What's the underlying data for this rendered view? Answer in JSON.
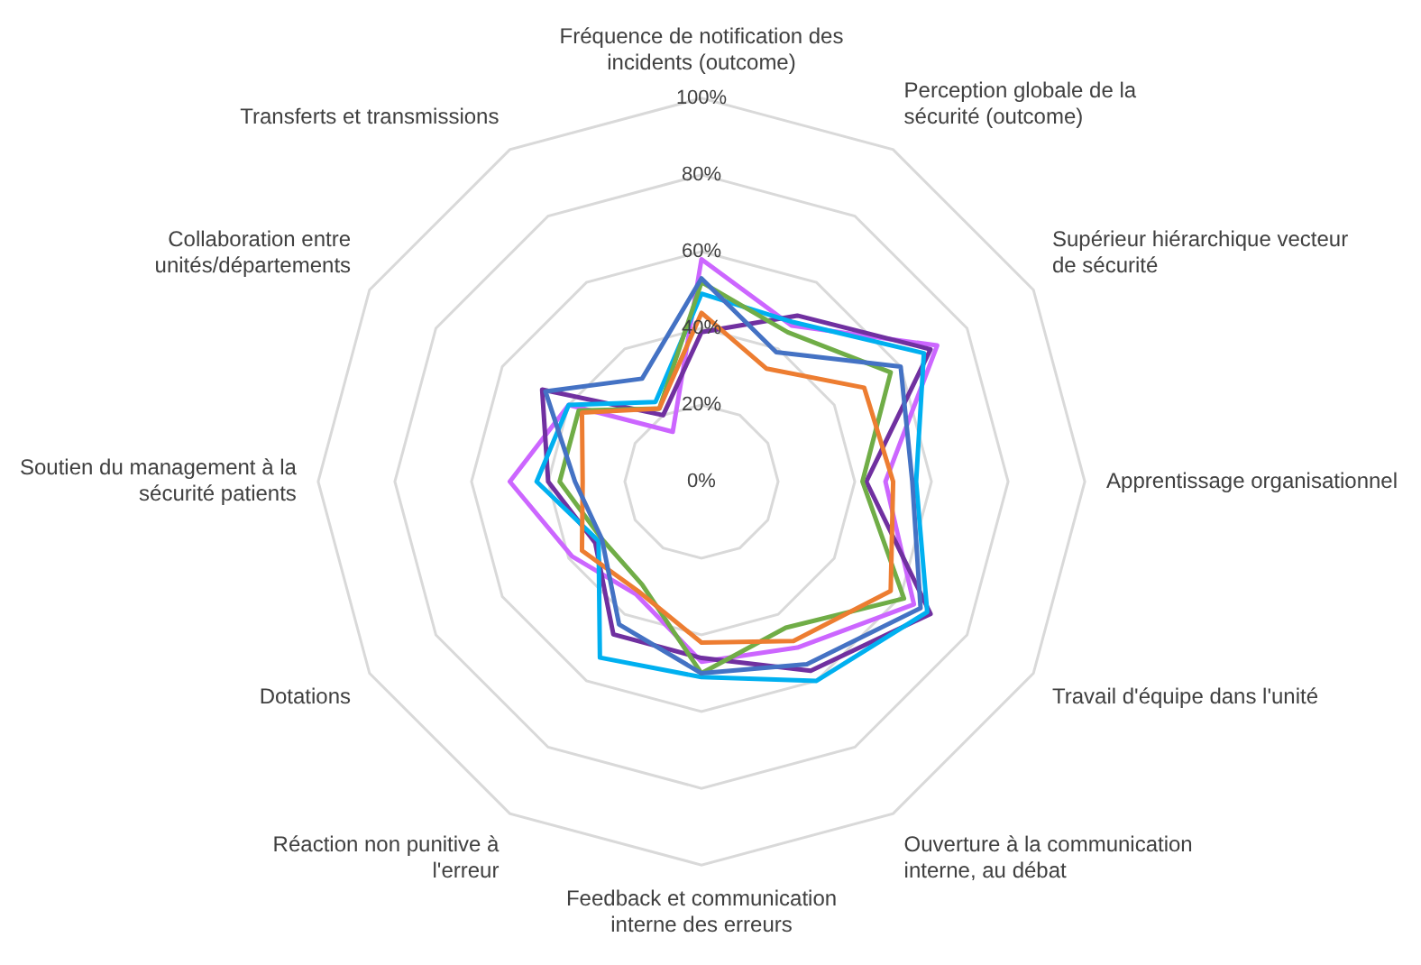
{
  "chart_data": {
    "type": "radar",
    "categories": [
      "Fréquence de notification des incidents (outcome)",
      "Perception globale de la sécurité (outcome)",
      "Supérieur hiérarchique vecteur de sécurité",
      "Apprentissage organisationnel",
      "Travail d'équipe dans l'unité",
      "Ouverture à la communication interne, au débat",
      "Feedback et communication interne des erreurs",
      "Réaction non punitive à l'erreur",
      "Dotations",
      "Soutien du management à la sécurité patients",
      "Collaboration entre unités/départements",
      "Transferts et transmissions"
    ],
    "series": [
      {
        "color": "#4472c4",
        "values": [
          53,
          39,
          60,
          55,
          66,
          55,
          50,
          43,
          30,
          33,
          47,
          31
        ]
      },
      {
        "color": "#ed7d31",
        "values": [
          44,
          34,
          49,
          50,
          57,
          48,
          42,
          33,
          36,
          31,
          36,
          22
        ]
      },
      {
        "color": "#70ad47",
        "values": [
          52,
          45,
          57,
          42,
          61,
          44,
          50,
          31,
          30,
          37,
          37,
          22
        ]
      },
      {
        "color": "#00b0f0",
        "values": [
          49,
          48,
          67,
          56,
          68,
          60,
          51,
          53,
          31,
          43,
          40,
          24
        ]
      },
      {
        "color": "#7030a0",
        "values": [
          39,
          50,
          69,
          43,
          69,
          57,
          46,
          46,
          32,
          40,
          48,
          20
        ]
      },
      {
        "color": "#cc66ff",
        "values": [
          58,
          47,
          71,
          48,
          64,
          50,
          47,
          34,
          39,
          50,
          40,
          15
        ]
      }
    ],
    "ylim": [
      0,
      100
    ],
    "yticks": [
      {
        "value": 0,
        "label": "0%"
      },
      {
        "value": 20,
        "label": "20%"
      },
      {
        "value": 40,
        "label": "40%"
      },
      {
        "value": 60,
        "label": "60%"
      },
      {
        "value": 80,
        "label": "80%"
      },
      {
        "value": 100,
        "label": "100%"
      }
    ],
    "grid": true,
    "legend": false,
    "marker": "none"
  }
}
